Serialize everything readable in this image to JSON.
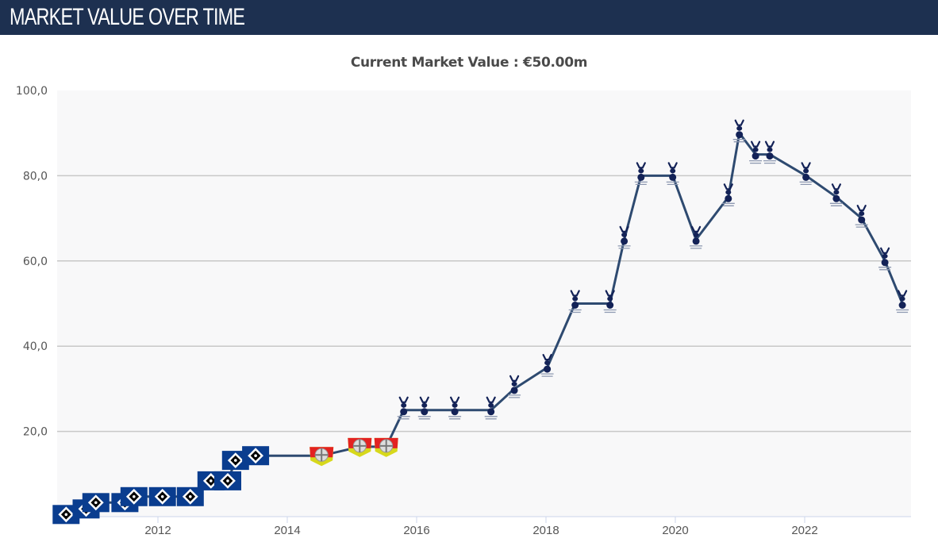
{
  "header": {
    "title": "MARKET VALUE OVER TIME"
  },
  "chart_data": {
    "type": "line",
    "title": "Current Market Value : €50.00m",
    "xlabel": "",
    "ylabel": "",
    "unit": "€m",
    "ylim": [
      0,
      100
    ],
    "xlim": [
      2010.3,
      2023.6
    ],
    "y_ticks": [
      20,
      40,
      60,
      80,
      100
    ],
    "y_tick_labels": [
      "20,0",
      "40,0",
      "60,0",
      "80,0",
      "100,0"
    ],
    "x_ticks": [
      2012,
      2014,
      2016,
      2018,
      2020,
      2022
    ],
    "x_tick_labels": [
      "2012",
      "2014",
      "2016",
      "2018",
      "2020",
      "2022"
    ],
    "grid": true,
    "line_color": "#2e4a70",
    "series": [
      {
        "name": "Market value",
        "points": [
          {
            "x": 2010.58,
            "y": 0.5,
            "club": "hsv"
          },
          {
            "x": 2010.89,
            "y": 1.8,
            "club": "hsv"
          },
          {
            "x": 2011.04,
            "y": 3.3,
            "club": "hsv"
          },
          {
            "x": 2011.49,
            "y": 3.3,
            "club": "hsv"
          },
          {
            "x": 2011.63,
            "y": 4.7,
            "club": "hsv"
          },
          {
            "x": 2012.07,
            "y": 4.7,
            "club": "hsv"
          },
          {
            "x": 2012.5,
            "y": 4.7,
            "club": "hsv"
          },
          {
            "x": 2012.82,
            "y": 8.4,
            "club": "hsv"
          },
          {
            "x": 2013.08,
            "y": 8.4,
            "club": "hsv"
          },
          {
            "x": 2013.2,
            "y": 13.2,
            "club": "hsv"
          },
          {
            "x": 2013.51,
            "y": 14.3,
            "club": "hsv"
          },
          {
            "x": 2014.53,
            "y": 14.3,
            "club": "leverkusen"
          },
          {
            "x": 2015.12,
            "y": 16.4,
            "club": "leverkusen"
          },
          {
            "x": 2015.53,
            "y": 16.4,
            "club": "leverkusen"
          },
          {
            "x": 2015.8,
            "y": 25,
            "club": "tottenham"
          },
          {
            "x": 2016.12,
            "y": 25,
            "club": "tottenham"
          },
          {
            "x": 2016.59,
            "y": 25,
            "club": "tottenham"
          },
          {
            "x": 2017.15,
            "y": 25,
            "club": "tottenham"
          },
          {
            "x": 2017.51,
            "y": 30,
            "club": "tottenham"
          },
          {
            "x": 2018.02,
            "y": 35,
            "club": "tottenham"
          },
          {
            "x": 2018.45,
            "y": 50,
            "club": "tottenham"
          },
          {
            "x": 2018.99,
            "y": 50,
            "club": "tottenham"
          },
          {
            "x": 2019.21,
            "y": 65,
            "club": "tottenham"
          },
          {
            "x": 2019.47,
            "y": 80,
            "club": "tottenham"
          },
          {
            "x": 2019.96,
            "y": 80,
            "club": "tottenham"
          },
          {
            "x": 2020.32,
            "y": 65,
            "club": "tottenham"
          },
          {
            "x": 2020.82,
            "y": 75,
            "club": "tottenham"
          },
          {
            "x": 2020.99,
            "y": 90,
            "club": "tottenham"
          },
          {
            "x": 2021.24,
            "y": 85,
            "club": "tottenham"
          },
          {
            "x": 2021.46,
            "y": 85,
            "club": "tottenham"
          },
          {
            "x": 2022.02,
            "y": 80,
            "club": "tottenham"
          },
          {
            "x": 2022.49,
            "y": 75,
            "club": "tottenham"
          },
          {
            "x": 2022.88,
            "y": 70,
            "club": "tottenham"
          },
          {
            "x": 2023.24,
            "y": 60,
            "club": "tottenham"
          },
          {
            "x": 2023.51,
            "y": 50,
            "club": "tottenham"
          }
        ]
      }
    ],
    "club_colors": {
      "hsv": {
        "primary": "#0a3d8f",
        "secondary": "#000000",
        "accent": "#ffffff"
      },
      "leverkusen": {
        "primary": "#e32221",
        "secondary": "#d7d81c",
        "accent": "#ffffff"
      },
      "tottenham": {
        "primary": "#132257",
        "secondary": "#ffffff",
        "accent": "#132257"
      }
    }
  }
}
